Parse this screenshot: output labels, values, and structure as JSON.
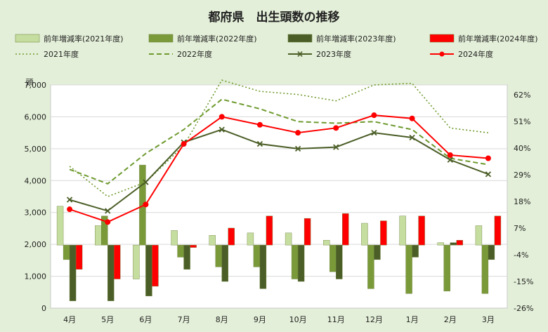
{
  "chart_data": {
    "type": "bar+line",
    "title": "都府県　出生頭数の推移",
    "ylabel_left": "頭",
    "categories": [
      "4月",
      "5月",
      "6月",
      "7月",
      "8月",
      "9月",
      "10月",
      "11月",
      "12月",
      "1月",
      "2月",
      "3月"
    ],
    "y_left": {
      "min": 0,
      "max": 7000,
      "ticks": [
        "0",
        "1,000",
        "2,000",
        "3,000",
        "4,000",
        "5,000",
        "6,000",
        "7,000"
      ]
    },
    "y_right": {
      "min": -26,
      "max": 66,
      "ticks": [
        "-26%",
        "-15%",
        "-4%",
        "7%",
        "18%",
        "29%",
        "40%",
        "51%",
        "62%"
      ]
    },
    "bar_series": [
      {
        "name": "前年増減率(2021年度)",
        "color": "#c5dd9f",
        "values": [
          16,
          8,
          -14,
          6,
          4,
          5,
          5,
          2,
          9,
          12,
          1,
          8
        ]
      },
      {
        "name": "前年増減率(2022年度)",
        "color": "#7a9a3a",
        "values": [
          -6,
          12,
          33,
          -5,
          -9,
          -9,
          -14,
          -11,
          -18,
          -20,
          -19,
          -20
        ]
      },
      {
        "name": "前年増減率(2023年度)",
        "color": "#4b5e27",
        "values": [
          -23,
          -23,
          -21,
          -10,
          -15,
          -18,
          -15,
          -14,
          -6,
          -5,
          1,
          -6
        ]
      },
      {
        "name": "前年増減率(2024年度)",
        "color": "#ff0000",
        "values": [
          -10,
          -14,
          -17,
          -1,
          7,
          12,
          11,
          13,
          10,
          12,
          2,
          12
        ]
      }
    ],
    "line_series": [
      {
        "name": "2021年度",
        "color": "#6e9a2e",
        "style": "dotted",
        "values": [
          4450,
          3500,
          3950,
          5100,
          7150,
          6800,
          6700,
          6500,
          7000,
          7050,
          5650,
          5500
        ]
      },
      {
        "name": "2022年度",
        "color": "#6e9a2e",
        "style": "dashed",
        "values": [
          4350,
          3900,
          4850,
          5600,
          6550,
          6250,
          5850,
          5800,
          5850,
          5600,
          4700,
          4500
        ]
      },
      {
        "name": "2023年度",
        "color": "#4b5e27",
        "style": "solid-x",
        "values": [
          3400,
          3050,
          3950,
          5200,
          5600,
          5150,
          5000,
          5050,
          5500,
          5350,
          4650,
          4200
        ]
      },
      {
        "name": "2024年度",
        "color": "#ff0000",
        "style": "solid-dot",
        "values": [
          3100,
          2700,
          3250,
          5150,
          6000,
          5750,
          5500,
          5650,
          6050,
          5950,
          4800,
          4700
        ]
      }
    ]
  }
}
